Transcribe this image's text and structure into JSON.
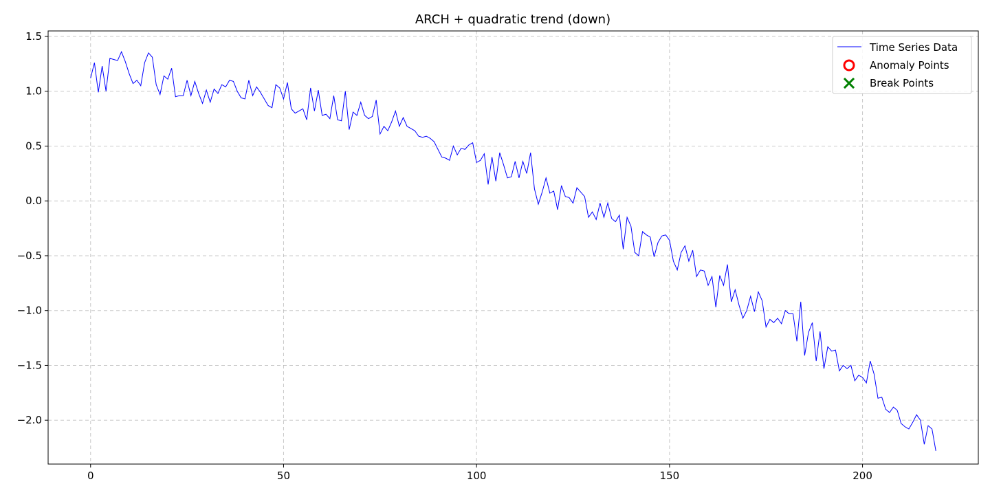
{
  "chart_data": {
    "type": "line",
    "title": "ARCH + quadratic trend (down)",
    "xlabel": "",
    "ylabel": "",
    "xlim": [
      -11,
      230
    ],
    "ylim": [
      -2.4,
      1.55
    ],
    "x_ticks": [
      0,
      50,
      100,
      150,
      200
    ],
    "x_tick_labels": [
      "0",
      "50",
      "100",
      "150",
      "200"
    ],
    "y_ticks": [
      1.5,
      1.0,
      0.5,
      0.0,
      -0.5,
      -1.0,
      -1.5,
      -2.0
    ],
    "y_tick_labels": [
      "1.5",
      "1.0",
      "0.5",
      "0.0",
      "−0.5",
      "−1.0",
      "−1.5",
      "−2.0"
    ],
    "grid": true,
    "legend_position": "top-right",
    "legend": [
      {
        "label": "Time Series Data",
        "marker": "line",
        "color": "#0000ff"
      },
      {
        "label": "Anomaly Points",
        "marker": "circle",
        "color": "#ff0000"
      },
      {
        "label": "Break Points",
        "marker": "x",
        "color": "#008000"
      }
    ],
    "series": [
      {
        "name": "Time Series Data",
        "color": "#0000ff",
        "x_start": 0,
        "x_step": 1,
        "values": [
          1.12,
          1.26,
          0.99,
          1.23,
          1.0,
          1.3,
          1.29,
          1.28,
          1.36,
          1.27,
          1.16,
          1.07,
          1.1,
          1.05,
          1.26,
          1.35,
          1.31,
          1.06,
          0.97,
          1.14,
          1.11,
          1.21,
          0.95,
          0.96,
          0.96,
          1.1,
          0.96,
          1.09,
          0.98,
          0.89,
          1.01,
          0.9,
          1.02,
          0.98,
          1.06,
          1.04,
          1.1,
          1.09,
          1.0,
          0.94,
          0.93,
          1.1,
          0.96,
          1.04,
          0.99,
          0.93,
          0.87,
          0.85,
          1.06,
          1.03,
          0.93,
          1.08,
          0.84,
          0.8,
          0.82,
          0.84,
          0.74,
          1.03,
          0.82,
          1.01,
          0.78,
          0.79,
          0.75,
          0.96,
          0.74,
          0.73,
          1.0,
          0.65,
          0.81,
          0.78,
          0.9,
          0.78,
          0.75,
          0.77,
          0.92,
          0.61,
          0.68,
          0.64,
          0.72,
          0.82,
          0.68,
          0.76,
          0.68,
          0.66,
          0.64,
          0.59,
          0.58,
          0.59,
          0.57,
          0.54,
          0.47,
          0.4,
          0.39,
          0.37,
          0.5,
          0.42,
          0.48,
          0.47,
          0.51,
          0.53,
          0.35,
          0.37,
          0.43,
          0.15,
          0.4,
          0.18,
          0.44,
          0.33,
          0.21,
          0.22,
          0.36,
          0.21,
          0.36,
          0.25,
          0.44,
          0.11,
          -0.03,
          0.08,
          0.21,
          0.07,
          0.09,
          -0.08,
          0.14,
          0.04,
          0.03,
          -0.02,
          0.12,
          0.08,
          0.04,
          -0.15,
          -0.1,
          -0.17,
          -0.02,
          -0.15,
          -0.02,
          -0.16,
          -0.19,
          -0.13,
          -0.44,
          -0.15,
          -0.23,
          -0.47,
          -0.5,
          -0.28,
          -0.31,
          -0.33,
          -0.51,
          -0.38,
          -0.32,
          -0.31,
          -0.36,
          -0.55,
          -0.63,
          -0.47,
          -0.41,
          -0.55,
          -0.45,
          -0.69,
          -0.63,
          -0.64,
          -0.77,
          -0.69,
          -0.97,
          -0.68,
          -0.77,
          -0.58,
          -0.92,
          -0.81,
          -0.95,
          -1.07,
          -1.0,
          -0.87,
          -1.01,
          -0.83,
          -0.91,
          -1.15,
          -1.08,
          -1.11,
          -1.07,
          -1.12,
          -1.0,
          -1.03,
          -1.03,
          -1.28,
          -0.92,
          -1.41,
          -1.2,
          -1.11,
          -1.46,
          -1.19,
          -1.53,
          -1.33,
          -1.37,
          -1.36,
          -1.55,
          -1.5,
          -1.53,
          -1.5,
          -1.64,
          -1.59,
          -1.61,
          -1.66,
          -1.46,
          -1.58,
          -1.8,
          -1.79,
          -1.9,
          -1.93,
          -1.88,
          -1.91,
          -2.03,
          -2.06,
          -2.08,
          -2.02,
          -1.95,
          -2.0,
          -2.22,
          -2.05,
          -2.08,
          -2.28
        ]
      }
    ]
  }
}
